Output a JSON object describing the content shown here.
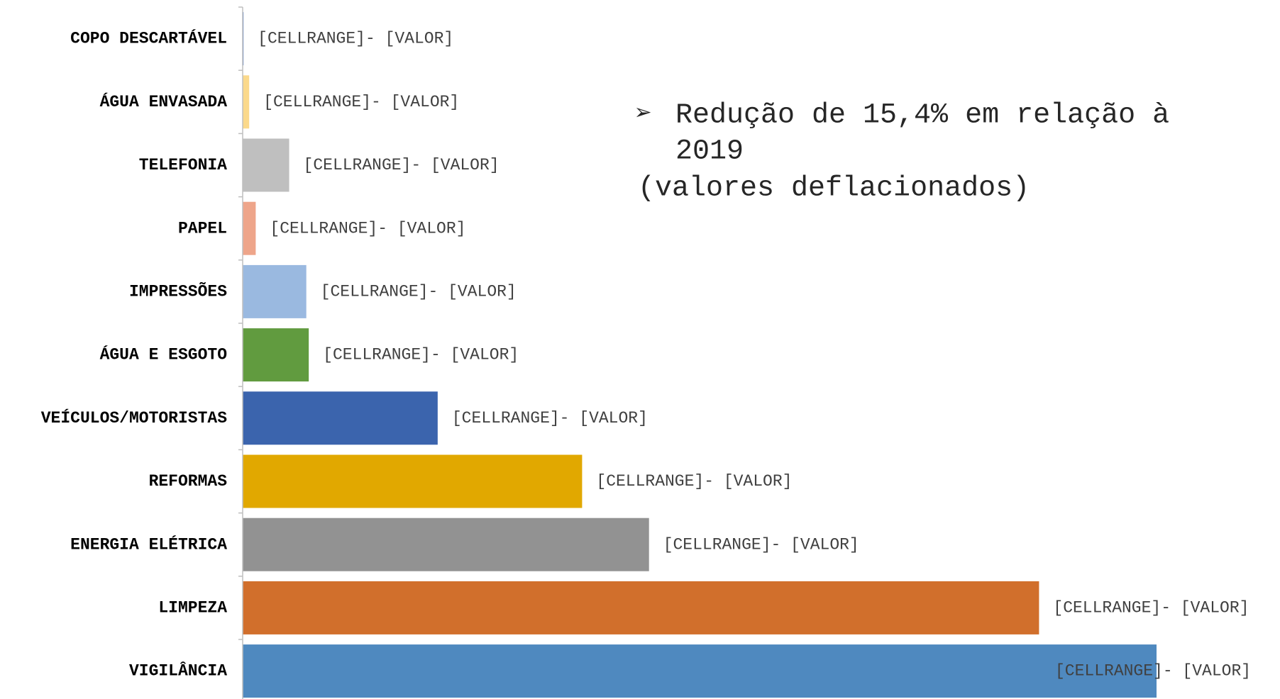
{
  "chart_data": {
    "type": "barh",
    "categories": [
      "COPO DESCARTÁVEL",
      "ÁGUA ENVASADA",
      "TELEFONIA",
      "PAPEL",
      "IMPRESSÕES",
      "ÁGUA E ESGOTO",
      "VEÍCULOS/MOTORISTAS",
      "REFORMAS",
      "ENERGIA ELÉTRICA",
      "LIMPEZA",
      "VIGILÂNCIA"
    ],
    "values": [
      1,
      8,
      57,
      16,
      78,
      81,
      239,
      416,
      498,
      976,
      1120
    ],
    "colors": [
      "#4472c4",
      "#fbd98b",
      "#bfbfbf",
      "#eea58a",
      "#9ab9e0",
      "#619b3f",
      "#3b64ad",
      "#e1a800",
      "#929292",
      "#d16f2c",
      "#4f89bf"
    ],
    "data_labels": [
      "[CELLRANGE]- [VALOR]",
      "[CELLRANGE]- [VALOR]",
      "[CELLRANGE]- [VALOR]",
      "[CELLRANGE]- [VALOR]",
      "[CELLRANGE]- [VALOR]",
      "[CELLRANGE]- [VALOR]",
      "[CELLRANGE]- [VALOR]",
      "[CELLRANGE]- [VALOR]",
      "[CELLRANGE]- [VALOR]",
      "[CELLRANGE]- [VALOR]",
      "[CELLRANGE]- [VALOR]"
    ],
    "xlim": [
      0,
      1120
    ],
    "annotation": {
      "bullet": "➢",
      "lines": [
        "Redução de 15,4% em relação à",
        "2019",
        "(valores deflacionados)"
      ]
    }
  }
}
